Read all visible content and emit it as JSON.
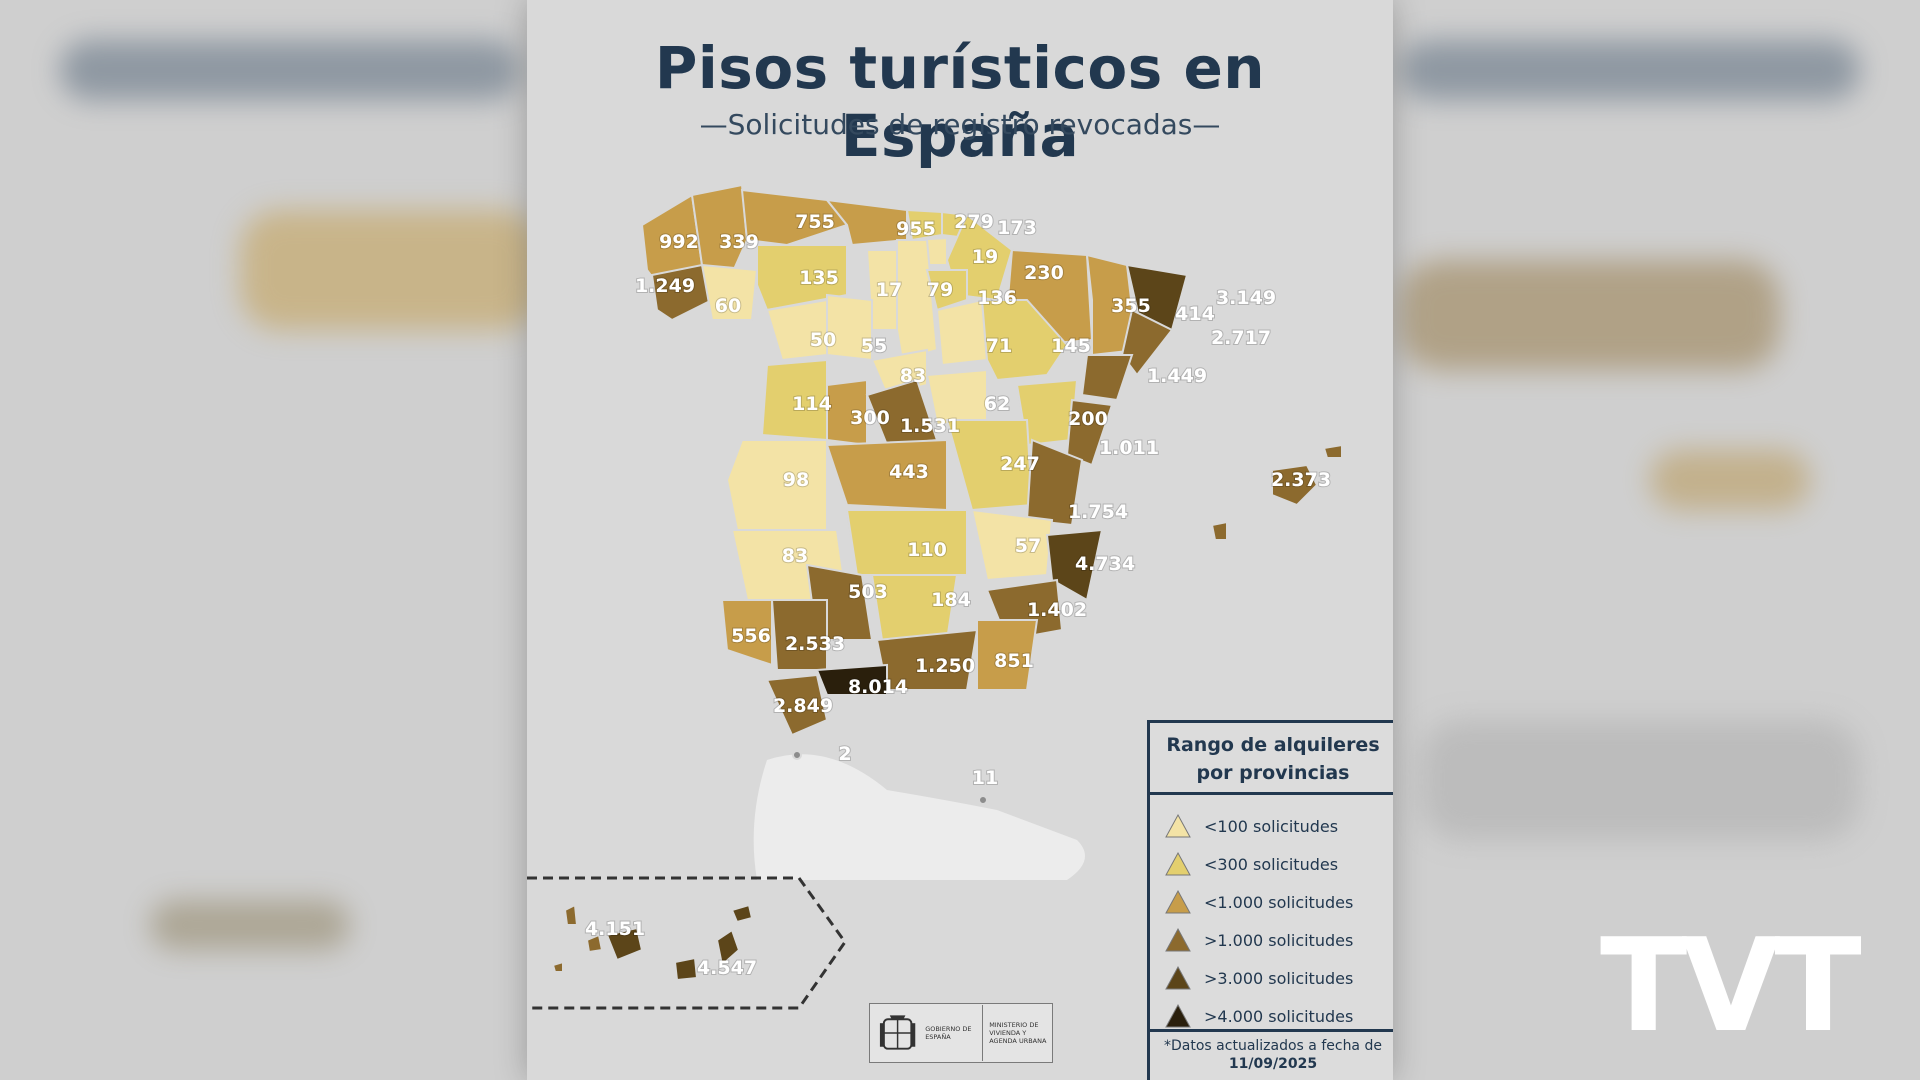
{
  "poster": {
    "title": "Pisos turísticos en España",
    "subtitle": "—Solicitudes de registro revocadas—"
  },
  "map": {
    "provinces": [
      {
        "name": "A Coruña",
        "value": "992"
      },
      {
        "name": "Lugo",
        "value": "339"
      },
      {
        "name": "Asturias",
        "value": "755"
      },
      {
        "name": "Cantabria",
        "value": "955"
      },
      {
        "name": "Bizkaia",
        "value": "279"
      },
      {
        "name": "Gipuzkoa",
        "value": "173"
      },
      {
        "name": "Araba",
        "value": "19"
      },
      {
        "name": "Navarra",
        "value": "230"
      },
      {
        "name": "Pontevedra",
        "value": "1.249"
      },
      {
        "name": "Ourense",
        "value": "60"
      },
      {
        "name": "León",
        "value": "135"
      },
      {
        "name": "Palencia",
        "value": "17"
      },
      {
        "name": "Burgos",
        "value": "79"
      },
      {
        "name": "La Rioja",
        "value": "136"
      },
      {
        "name": "Huesca",
        "value": "355"
      },
      {
        "name": "Lleida",
        "value": "414"
      },
      {
        "name": "Girona",
        "value": "3.149"
      },
      {
        "name": "Barcelona",
        "value": "2.717"
      },
      {
        "name": "Zamora",
        "value": "50"
      },
      {
        "name": "Valladolid",
        "value": "55"
      },
      {
        "name": "Soria",
        "value": "71"
      },
      {
        "name": "Zaragoza",
        "value": "145"
      },
      {
        "name": "Tarragona",
        "value": "1.449"
      },
      {
        "name": "Segovia",
        "value": "83"
      },
      {
        "name": "Salamanca",
        "value": "114"
      },
      {
        "name": "Ávila",
        "value": "300"
      },
      {
        "name": "Madrid",
        "value": "1.531"
      },
      {
        "name": "Guadalajara",
        "value": "62"
      },
      {
        "name": "Teruel",
        "value": "200"
      },
      {
        "name": "Castellón",
        "value": "1.011"
      },
      {
        "name": "Illes Balears",
        "value": "2.373"
      },
      {
        "name": "Cáceres",
        "value": "98"
      },
      {
        "name": "Toledo",
        "value": "443"
      },
      {
        "name": "Cuenca",
        "value": "247"
      },
      {
        "name": "Valencia",
        "value": "1.754"
      },
      {
        "name": "Badajoz",
        "value": "83"
      },
      {
        "name": "Ciudad Real",
        "value": "110"
      },
      {
        "name": "Albacete",
        "value": "57"
      },
      {
        "name": "Alicante",
        "value": "4.734"
      },
      {
        "name": "Córdoba",
        "value": "503"
      },
      {
        "name": "Jaén",
        "value": "184"
      },
      {
        "name": "Murcia",
        "value": "1.402"
      },
      {
        "name": "Huelva",
        "value": "556"
      },
      {
        "name": "Sevilla",
        "value": "2.533"
      },
      {
        "name": "Granada",
        "value": "1.250"
      },
      {
        "name": "Almería",
        "value": "851"
      },
      {
        "name": "Málaga",
        "value": "8.014"
      },
      {
        "name": "Cádiz",
        "value": "2.849"
      },
      {
        "name": "Ceuta",
        "value": "2"
      },
      {
        "name": "Melilla",
        "value": "11"
      },
      {
        "name": "Santa Cruz de Tenerife",
        "value": "4.151"
      },
      {
        "name": "Las Palmas",
        "value": "4.547"
      }
    ]
  },
  "legend": {
    "title_line1": "Rango de alquileres",
    "title_line2": "por provincias",
    "items": [
      {
        "label": "<100 solicitudes",
        "color": "#f3e3a6"
      },
      {
        "label": "<300 solicitudes",
        "color": "#e3cf6e"
      },
      {
        "label": "<1.000 solicitudes",
        "color": "#c79d4a"
      },
      {
        "label": ">1.000 solicitudes",
        "color": "#8c6a2e"
      },
      {
        "label": ">3.000 solicitudes",
        "color": "#5c4519"
      },
      {
        "label": ">4.000 solicitudes",
        "color": "#2a1f0c"
      }
    ],
    "note": "*Datos actualizados a fecha de",
    "date": "11/09/2025"
  },
  "gov_logo": {
    "left_text": "GOBIERNO DE ESPAÑA",
    "right_text": "MINISTERIO DE VIVIENDA Y AGENDA URBANA"
  },
  "watermark": "TVT"
}
